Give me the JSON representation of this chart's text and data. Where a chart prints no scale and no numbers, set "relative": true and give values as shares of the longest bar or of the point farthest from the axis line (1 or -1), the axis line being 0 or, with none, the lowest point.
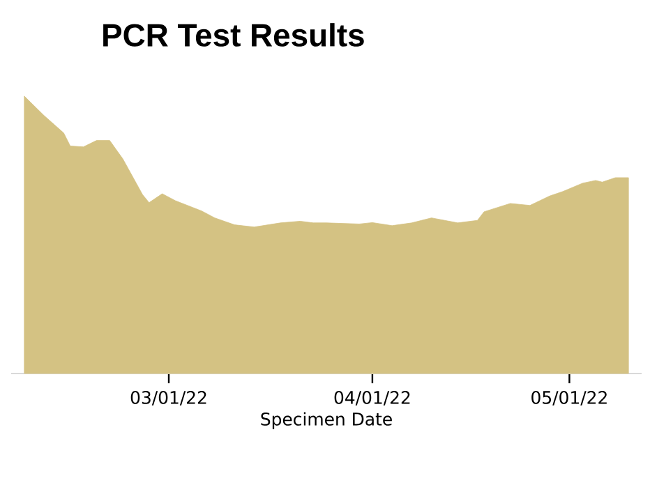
{
  "chart_data": {
    "type": "area",
    "title": "PCR Test Results",
    "xlabel": "Specimen Date",
    "relative": true,
    "color": "#d4c283",
    "x": [
      "2022-02-07",
      "2022-02-10",
      "2022-02-13",
      "2022-02-14",
      "2022-02-16",
      "2022-02-18",
      "2022-02-20",
      "2022-02-22",
      "2022-02-25",
      "2022-02-26",
      "2022-02-28",
      "2022-03-02",
      "2022-03-06",
      "2022-03-08",
      "2022-03-11",
      "2022-03-14",
      "2022-03-18",
      "2022-03-21",
      "2022-03-23",
      "2022-03-25",
      "2022-03-30",
      "2022-04-01",
      "2022-04-04",
      "2022-04-07",
      "2022-04-10",
      "2022-04-14",
      "2022-04-17",
      "2022-04-18",
      "2022-04-22",
      "2022-04-25",
      "2022-04-28",
      "2022-04-30",
      "2022-05-03",
      "2022-05-05",
      "2022-05-06",
      "2022-05-08",
      "2022-05-10"
    ],
    "values": [
      1.0,
      0.93,
      0.867,
      0.82,
      0.817,
      0.84,
      0.84,
      0.774,
      0.645,
      0.616,
      0.648,
      0.623,
      0.586,
      0.561,
      0.536,
      0.528,
      0.543,
      0.549,
      0.543,
      0.543,
      0.539,
      0.544,
      0.533,
      0.543,
      0.561,
      0.543,
      0.552,
      0.583,
      0.613,
      0.606,
      0.64,
      0.656,
      0.686,
      0.696,
      0.69,
      0.706,
      0.706
    ],
    "xlim": [
      "2022-02-05",
      "2022-05-12"
    ],
    "xticks": [
      {
        "value": "2022-03-01",
        "label": "03/01/22"
      },
      {
        "value": "2022-04-01",
        "label": "04/01/22"
      },
      {
        "value": "2022-05-01",
        "label": "05/01/22"
      }
    ]
  }
}
